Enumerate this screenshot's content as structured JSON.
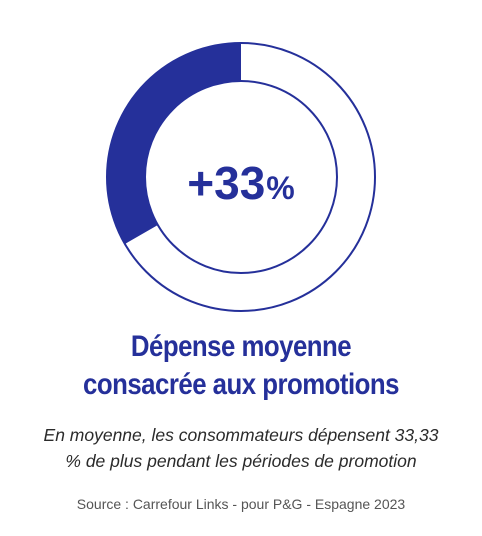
{
  "chart_data": {
    "type": "pie",
    "style": "donut",
    "value_percent": 33.33,
    "center_label": {
      "number": "+33",
      "unit": "%"
    },
    "colors": {
      "filled": "#25309a",
      "ring_outline": "#25309a",
      "background": "#ffffff"
    }
  },
  "heading": {
    "line1": "Dépense moyenne",
    "line2": "consacrée aux promotions"
  },
  "description": {
    "line1": "En moyenne, les consommateurs dépensent 33,33",
    "line2": "% de plus pendant les périodes de promotion"
  },
  "source": "Source : Carrefour Links - pour P&G - Espagne 2023",
  "colors": {
    "accent": "#25309a",
    "body_text": "#2b2b2b",
    "source_text": "#555555"
  }
}
